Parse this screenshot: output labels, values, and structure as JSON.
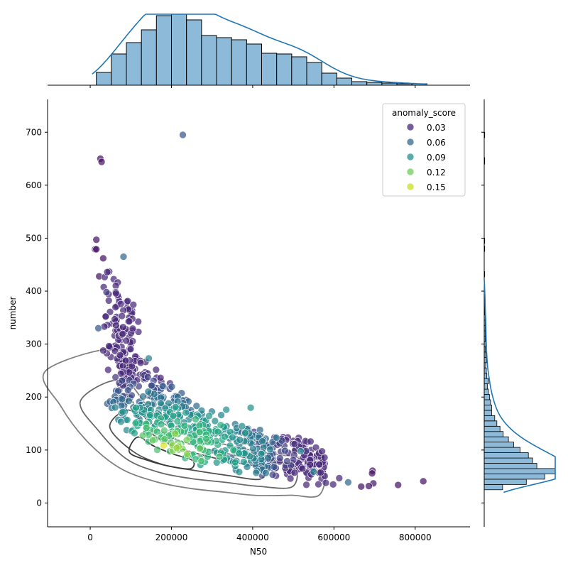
{
  "chart_data": {
    "type": "scatter",
    "title": "",
    "xlabel": "N50",
    "ylabel": "number",
    "xlim": [
      -105000,
      935000
    ],
    "ylim": [
      -45,
      762
    ],
    "xticks": [
      0,
      200000,
      400000,
      600000,
      800000
    ],
    "xtick_labels": [
      "0",
      "200000",
      "400000",
      "600000",
      "800000"
    ],
    "yticks": [
      0,
      100,
      200,
      300,
      400,
      500,
      600,
      700
    ],
    "ytick_labels": [
      "0",
      "100",
      "200",
      "300",
      "400",
      "500",
      "600",
      "700"
    ],
    "grid": false,
    "legend": {
      "title": "anomaly_score",
      "placement": "upper right",
      "entries": [
        {
          "label": "0.03",
          "color": "#482878"
        },
        {
          "label": "0.06",
          "color": "#31688e"
        },
        {
          "label": "0.09",
          "color": "#21908d"
        },
        {
          "label": "0.12",
          "color": "#6ccd5a"
        },
        {
          "label": "0.15",
          "color": "#c8e020"
        }
      ]
    },
    "colormap": "viridis",
    "colormap_stops": [
      "#440154",
      "#482878",
      "#3e4a89",
      "#31688e",
      "#26828e",
      "#1f9e89",
      "#35b779",
      "#6ece58",
      "#b5de2b",
      "#fde725"
    ],
    "colorscale_domain": [
      0.0,
      0.18
    ],
    "labeled_points": [
      {
        "x": 25000,
        "y": 650,
        "score": 0.01
      },
      {
        "x": 28000,
        "y": 644,
        "score": 0.01
      },
      {
        "x": 228000,
        "y": 695,
        "score": 0.05
      },
      {
        "x": 15000,
        "y": 497,
        "score": 0.01
      },
      {
        "x": 12000,
        "y": 479,
        "score": 0.01
      },
      {
        "x": 15000,
        "y": 479,
        "score": 0.01
      },
      {
        "x": 32000,
        "y": 462,
        "score": 0.01
      },
      {
        "x": 82000,
        "y": 465,
        "score": 0.06
      },
      {
        "x": 42000,
        "y": 436,
        "score": 0.02
      },
      {
        "x": 22000,
        "y": 428,
        "score": 0.01
      },
      {
        "x": 40000,
        "y": 398,
        "score": 0.03
      },
      {
        "x": 20000,
        "y": 330,
        "score": 0.05
      },
      {
        "x": 395000,
        "y": 180,
        "score": 0.09
      },
      {
        "x": 144000,
        "y": 273,
        "score": 0.08
      },
      {
        "x": 335000,
        "y": 176,
        "score": 0.09
      },
      {
        "x": 820000,
        "y": 41,
        "score": 0.01
      },
      {
        "x": 758000,
        "y": 34,
        "score": 0.01
      },
      {
        "x": 695000,
        "y": 61,
        "score": 0.01
      },
      {
        "x": 694000,
        "y": 56,
        "score": 0.01
      },
      {
        "x": 697000,
        "y": 37,
        "score": 0.01
      },
      {
        "x": 686000,
        "y": 32,
        "score": 0.01
      },
      {
        "x": 667000,
        "y": 31,
        "score": 0.01
      },
      {
        "x": 635000,
        "y": 39,
        "score": 0.06
      },
      {
        "x": 613000,
        "y": 47,
        "score": 0.02
      },
      {
        "x": 580000,
        "y": 38,
        "score": 0.02
      },
      {
        "x": 598000,
        "y": 35,
        "score": 0.02
      },
      {
        "x": 518000,
        "y": 98,
        "score": 0.08
      },
      {
        "x": 412000,
        "y": 112,
        "score": 0.02
      },
      {
        "x": 550000,
        "y": 59,
        "score": 0.08
      }
    ],
    "kde_levels_drawn": 4,
    "top_marginal": {
      "type": "histogram",
      "bin_edges": [
        15000,
        52000,
        89000,
        126000,
        163000,
        200000,
        237000,
        274000,
        311000,
        348000,
        385000,
        422000,
        459000,
        496000,
        533000,
        570000,
        607000,
        644000,
        681000,
        718000,
        755000,
        792000,
        829000
      ],
      "counts": [
        18,
        44,
        60,
        78,
        98,
        100,
        92,
        70,
        67,
        64,
        58,
        45,
        44,
        40,
        32,
        17,
        10,
        5,
        4,
        3,
        2,
        2
      ]
    },
    "right_marginal": {
      "type": "histogram",
      "bin_edges": [
        25,
        35,
        45,
        55,
        65,
        75,
        85,
        95,
        105,
        115,
        125,
        135,
        145,
        155,
        165,
        175,
        185,
        195,
        205,
        215,
        225,
        235,
        245,
        255,
        265,
        275,
        285,
        295,
        305,
        315,
        325,
        335,
        345,
        355,
        365,
        375,
        385,
        395,
        405
      ],
      "counts": [
        35,
        80,
        115,
        135,
        100,
        92,
        84,
        68,
        56,
        46,
        36,
        30,
        24,
        20,
        14,
        14,
        12,
        10,
        8,
        6,
        8,
        5,
        4,
        3,
        4,
        3,
        2,
        3,
        2,
        2,
        2,
        2,
        2,
        1,
        1,
        1,
        1,
        1
      ],
      "sparse_bins": [
        {
          "y0": 427,
          "y1": 437,
          "count": 1
        },
        {
          "y0": 475,
          "y1": 485,
          "count": 1
        },
        {
          "y0": 490,
          "y1": 500,
          "count": 1
        },
        {
          "y0": 640,
          "y1": 652,
          "count": 1
        },
        {
          "y0": 690,
          "y1": 700,
          "count": 1
        }
      ]
    }
  }
}
